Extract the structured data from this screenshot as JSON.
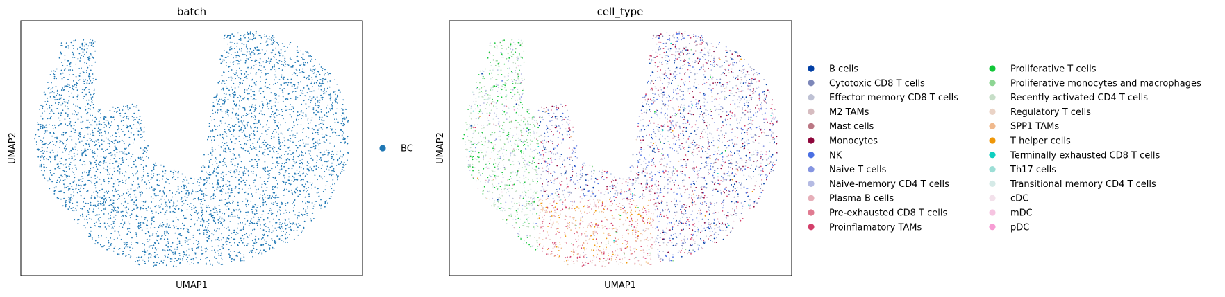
{
  "chart_data": [
    {
      "type": "scatter",
      "title": "batch",
      "xlabel": "UMAP1",
      "ylabel": "UMAP2",
      "ticks": "none",
      "grid": false,
      "legend_position": "right",
      "series": [
        {
          "name": "BC",
          "color": "#1f77b4"
        }
      ]
    },
    {
      "type": "scatter",
      "title": "cell_type",
      "xlabel": "UMAP1",
      "ylabel": "UMAP2",
      "ticks": "none",
      "grid": false,
      "legend_position": "right",
      "legend_columns": 2,
      "series": [
        {
          "name": "B cells",
          "color": "#023fa5"
        },
        {
          "name": "Cytotoxic CD8 T cells",
          "color": "#7d87b9"
        },
        {
          "name": "Effector memory CD8 T cells",
          "color": "#bec1d4"
        },
        {
          "name": "M2 TAMs",
          "color": "#d6bcc0"
        },
        {
          "name": "Mast cells",
          "color": "#bb7784"
        },
        {
          "name": "Monocytes",
          "color": "#8e063b"
        },
        {
          "name": "NK",
          "color": "#4a6fe3"
        },
        {
          "name": "Naive T cells",
          "color": "#8595e1"
        },
        {
          "name": "Naive-memory CD4 T cells",
          "color": "#b5bbe3"
        },
        {
          "name": "Plasma B cells",
          "color": "#e6afb9"
        },
        {
          "name": "Pre-exhausted CD8 T cells",
          "color": "#e07b91"
        },
        {
          "name": "Proinflamatory TAMs",
          "color": "#d33f6a"
        },
        {
          "name": "Proliferative T cells",
          "color": "#11c638"
        },
        {
          "name": "Proliferative monocytes and macrophages",
          "color": "#8dd593"
        },
        {
          "name": "Recently activated CD4 T cells",
          "color": "#c6dec7"
        },
        {
          "name": "Regulatory T cells",
          "color": "#ead3c6"
        },
        {
          "name": "SPP1 TAMs",
          "color": "#f0b98d"
        },
        {
          "name": "T helper cells",
          "color": "#ef9708"
        },
        {
          "name": "Terminally exhausted CD8 T cells",
          "color": "#0fcfc0"
        },
        {
          "name": "Th17 cells",
          "color": "#9cded6"
        },
        {
          "name": "Transitional memory CD4 T cells",
          "color": "#d5eae7"
        },
        {
          "name": "cDC",
          "color": "#f3e1eb"
        },
        {
          "name": "mDC",
          "color": "#f6c4e1"
        },
        {
          "name": "pDC",
          "color": "#f79cd4"
        }
      ]
    }
  ]
}
